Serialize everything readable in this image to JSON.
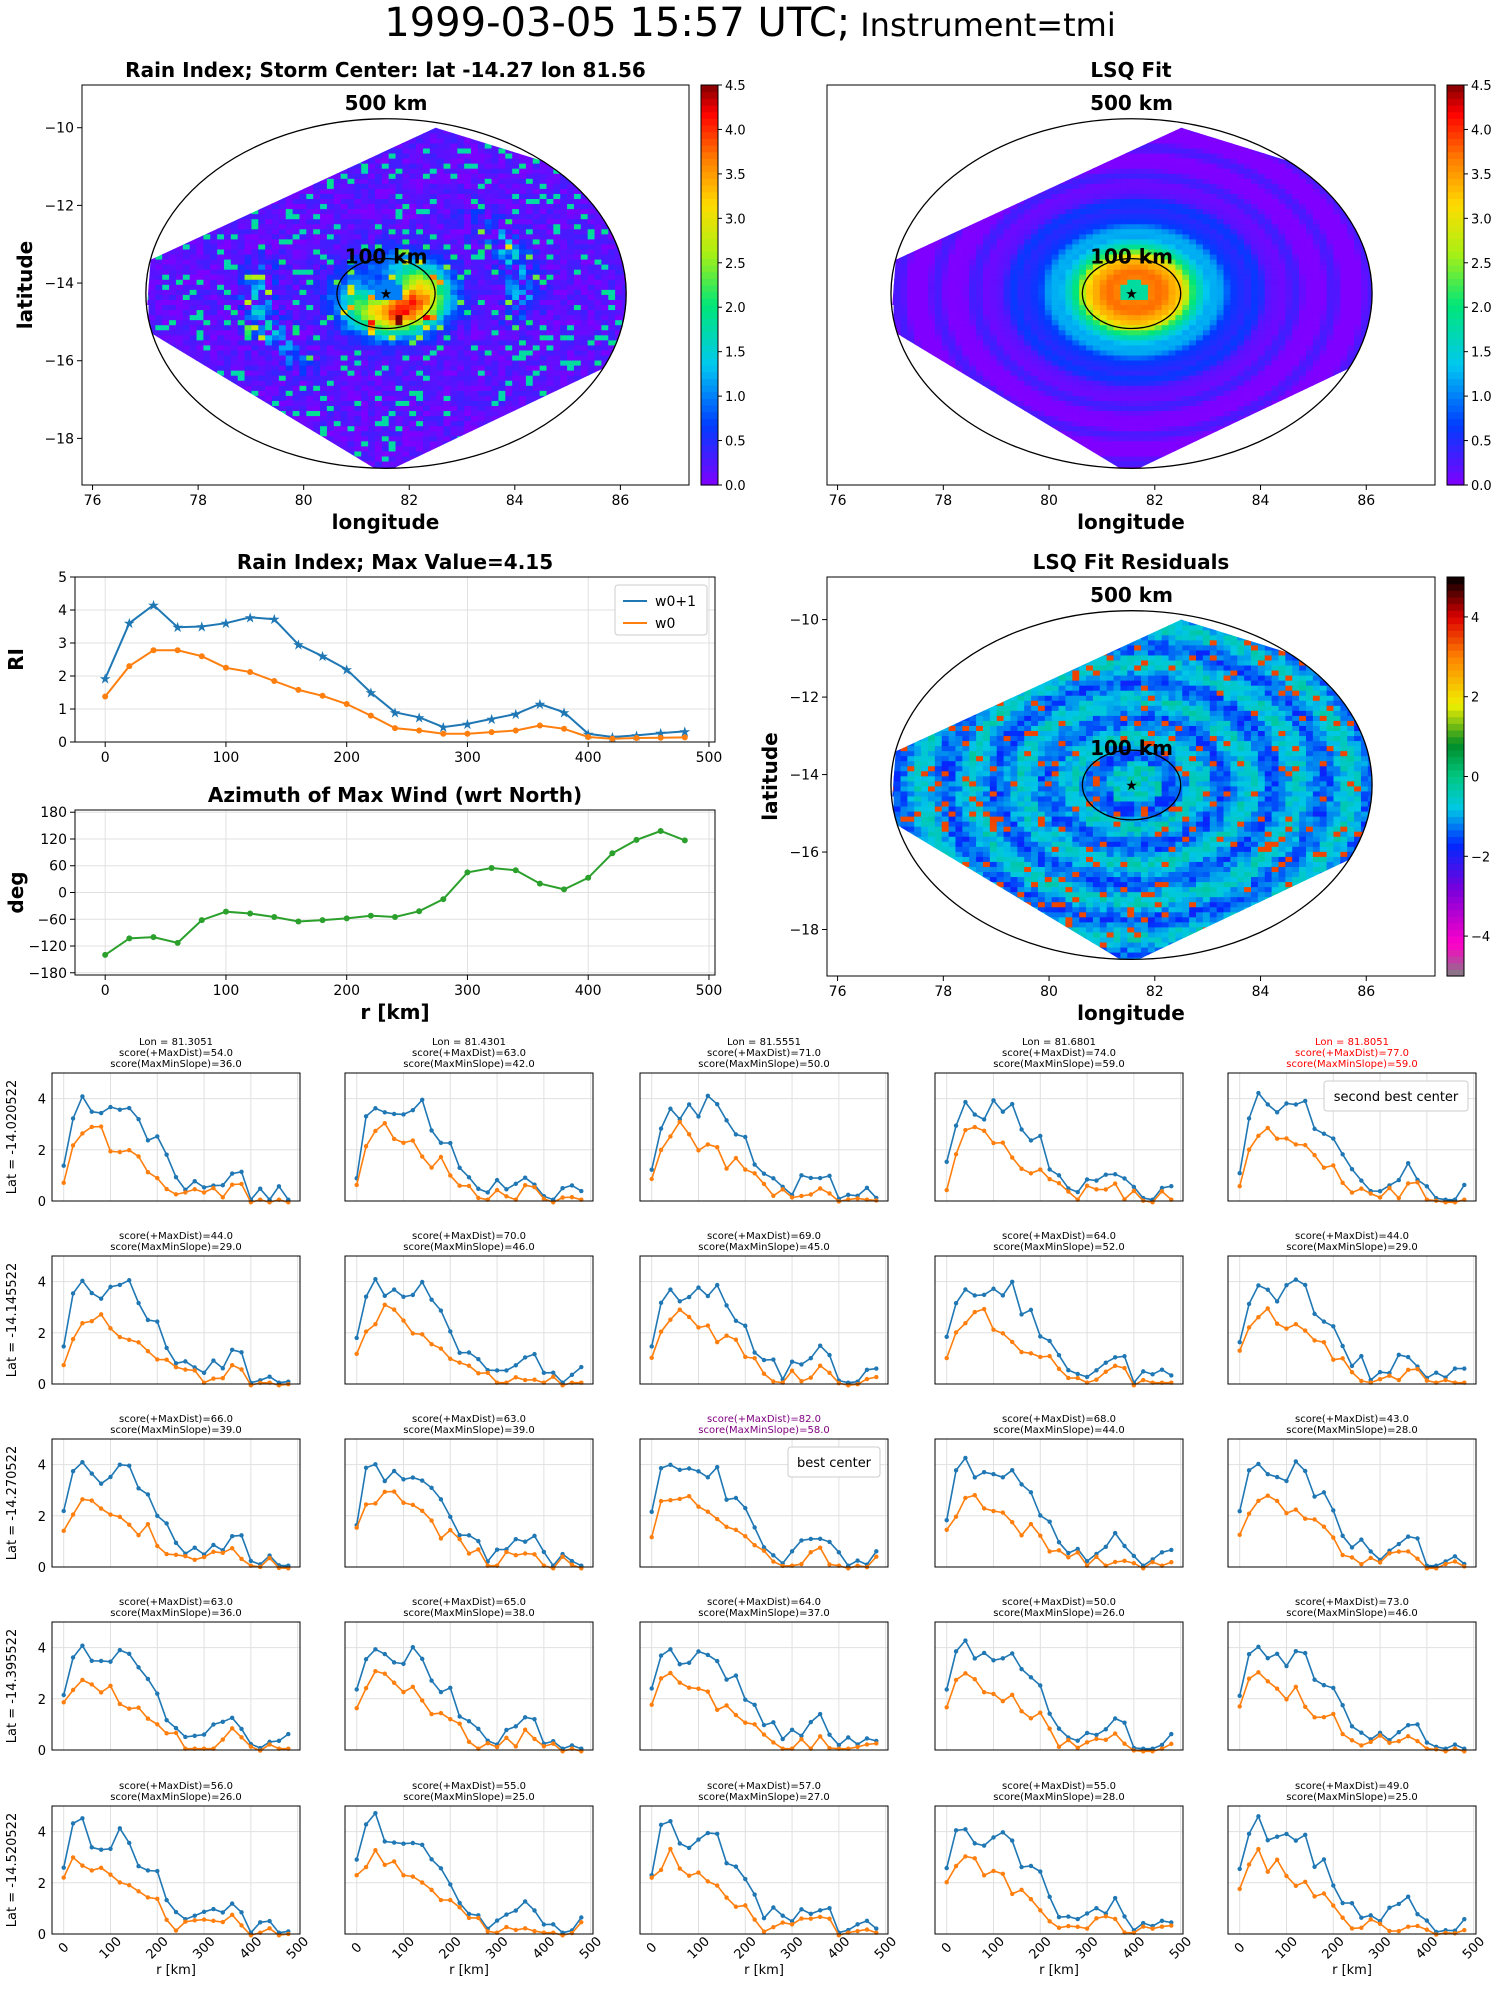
{
  "page": {
    "title_main": "1999-03-05 15:57 UTC;",
    "title_instr": "Instrument=tmi"
  },
  "colors": {
    "w0p1": "#1f77b4",
    "w0": "#ff7f0e",
    "azimuth": "#2ca02c",
    "highlight_red": "#ff0000",
    "highlight_purple": "#800080"
  },
  "chart_data": [
    {
      "id": "rain-index-map",
      "type": "heatmap",
      "title": "Rain Index; Storm Center: lat -14.27 lon 81.56",
      "xlabel": "longitude",
      "ylabel": "latitude",
      "xlim": [
        75.8,
        87.3
      ],
      "ylim": [
        -19.2,
        -8.9
      ],
      "xticks": [
        "76",
        "78",
        "80",
        "82",
        "84",
        "86"
      ],
      "yticks": [
        "−10",
        "−12",
        "−14",
        "−16",
        "−18"
      ],
      "center": [
        81.56,
        -14.27
      ],
      "ring_labels": [
        "500 km",
        "100 km"
      ],
      "colorbar": {
        "range": [
          0,
          4.5
        ],
        "ticks": [
          "0.0",
          "0.5",
          "1.0",
          "1.5",
          "2.0",
          "2.5",
          "3.0",
          "3.5",
          "4.0",
          "4.5"
        ],
        "cmap": "rainbow"
      }
    },
    {
      "id": "lsq-fit-map",
      "type": "heatmap",
      "title": "LSQ Fit",
      "xlabel": "longitude",
      "xlim": [
        75.8,
        87.3
      ],
      "ylim": [
        -19.2,
        -8.9
      ],
      "xticks": [
        "76",
        "78",
        "80",
        "82",
        "84",
        "86"
      ],
      "center": [
        81.56,
        -14.27
      ],
      "ring_labels": [
        "500 km",
        "100 km"
      ],
      "colorbar": {
        "range": [
          0,
          4.5
        ],
        "ticks": [
          "0.0",
          "0.5",
          "1.0",
          "1.5",
          "2.0",
          "2.5",
          "3.0",
          "3.5",
          "4.0",
          "4.5"
        ],
        "cmap": "rainbow"
      }
    },
    {
      "id": "residuals-map",
      "type": "heatmap",
      "title": "LSQ Fit Residuals",
      "xlabel": "longitude",
      "ylabel": "latitude",
      "xlim": [
        75.8,
        87.3
      ],
      "ylim": [
        -19.2,
        -8.9
      ],
      "xticks": [
        "76",
        "78",
        "80",
        "82",
        "84",
        "86"
      ],
      "yticks": [
        "−10",
        "−12",
        "−14",
        "−16",
        "−18"
      ],
      "center": [
        81.56,
        -14.27
      ],
      "ring_labels": [
        "500 km",
        "100 km"
      ],
      "colorbar": {
        "range": [
          -5,
          5
        ],
        "ticks": [
          "4",
          "2",
          "0",
          "−2",
          "−4"
        ],
        "cmap": "diverging"
      }
    },
    {
      "id": "rain-index-profile",
      "type": "line",
      "title": "Rain Index; Max Value=4.15",
      "ylabel": "RI",
      "xlim": [
        -25,
        505
      ],
      "ylim": [
        0,
        5
      ],
      "xticks": [
        "0",
        "100",
        "200",
        "300",
        "400",
        "500"
      ],
      "yticks": [
        "0",
        "1",
        "2",
        "3",
        "4",
        "5"
      ],
      "legend": "top-right",
      "x": [
        0,
        20,
        40,
        60,
        80,
        100,
        120,
        140,
        160,
        180,
        200,
        220,
        240,
        260,
        280,
        300,
        320,
        340,
        360,
        380,
        400,
        420,
        440,
        460,
        480
      ],
      "series": [
        {
          "name": "w0+1",
          "values": [
            1.92,
            3.6,
            4.15,
            3.48,
            3.5,
            3.6,
            3.78,
            3.72,
            2.95,
            2.6,
            2.2,
            1.5,
            0.9,
            0.75,
            0.45,
            0.55,
            0.7,
            0.85,
            1.15,
            0.9,
            0.25,
            0.15,
            0.2,
            0.27,
            0.32
          ]
        },
        {
          "name": "w0",
          "values": [
            1.38,
            2.3,
            2.78,
            2.78,
            2.6,
            2.25,
            2.12,
            1.85,
            1.58,
            1.4,
            1.15,
            0.8,
            0.42,
            0.35,
            0.25,
            0.25,
            0.3,
            0.35,
            0.5,
            0.4,
            0.15,
            0.1,
            0.12,
            0.13,
            0.14
          ]
        }
      ]
    },
    {
      "id": "azimuth-profile",
      "type": "line",
      "title": "Azimuth of Max Wind (wrt North)",
      "xlabel": "r [km]",
      "ylabel": "deg",
      "xlim": [
        -25,
        505
      ],
      "ylim": [
        -185,
        185
      ],
      "xticks": [
        "0",
        "100",
        "200",
        "300",
        "400",
        "500"
      ],
      "yticks": [
        "180",
        "120",
        "60",
        "0",
        "−60",
        "−120",
        "−180"
      ],
      "x": [
        0,
        20,
        40,
        60,
        80,
        100,
        120,
        140,
        160,
        180,
        200,
        220,
        240,
        260,
        280,
        300,
        320,
        340,
        360,
        380,
        400,
        420,
        440,
        460,
        480
      ],
      "values": [
        -140,
        -103,
        -100,
        -113,
        -62,
        -43,
        -47,
        -55,
        -65,
        -62,
        -58,
        -52,
        -55,
        -42,
        -15,
        45,
        55,
        50,
        20,
        7,
        33,
        88,
        118,
        138,
        117
      ]
    },
    {
      "id": "candidate-grid",
      "type": "line",
      "xlabel": "r [km]",
      "xticks": [
        "0",
        "100",
        "200",
        "300",
        "400",
        "500"
      ],
      "yticks": [
        "0",
        "2",
        "4"
      ],
      "lons": [
        "Lon = 81.3051",
        "Lon = 81.4301",
        "Lon = 81.5551",
        "Lon = 81.6801",
        "Lon = 81.8051"
      ],
      "row_labels": [
        "Lat = -14.020522",
        "Lat = -14.145522",
        "Lat = -14.270522",
        "Lat = -14.395522",
        "Lat = -14.520522"
      ],
      "scores": [
        [
          [
            "score(+MaxDist)=54.0",
            "score(MaxMinSlope)=36.0"
          ],
          [
            "score(+MaxDist)=63.0",
            "score(MaxMinSlope)=42.0"
          ],
          [
            "score(+MaxDist)=71.0",
            "score(MaxMinSlope)=50.0"
          ],
          [
            "score(+MaxDist)=74.0",
            "score(MaxMinSlope)=59.0"
          ],
          [
            "score(+MaxDist)=77.0",
            "score(MaxMinSlope)=59.0"
          ]
        ],
        [
          [
            "score(+MaxDist)=44.0",
            "score(MaxMinSlope)=29.0"
          ],
          [
            "score(+MaxDist)=70.0",
            "score(MaxMinSlope)=46.0"
          ],
          [
            "score(+MaxDist)=69.0",
            "score(MaxMinSlope)=45.0"
          ],
          [
            "score(+MaxDist)=64.0",
            "score(MaxMinSlope)=52.0"
          ],
          [
            "score(+MaxDist)=44.0",
            "score(MaxMinSlope)=29.0"
          ]
        ],
        [
          [
            "score(+MaxDist)=66.0",
            "score(MaxMinSlope)=39.0"
          ],
          [
            "score(+MaxDist)=63.0",
            "score(MaxMinSlope)=39.0"
          ],
          [
            "score(+MaxDist)=82.0",
            "score(MaxMinSlope)=58.0"
          ],
          [
            "score(+MaxDist)=68.0",
            "score(MaxMinSlope)=44.0"
          ],
          [
            "score(+MaxDist)=43.0",
            "score(MaxMinSlope)=28.0"
          ]
        ],
        [
          [
            "score(+MaxDist)=63.0",
            "score(MaxMinSlope)=36.0"
          ],
          [
            "score(+MaxDist)=65.0",
            "score(MaxMinSlope)=38.0"
          ],
          [
            "score(+MaxDist)=64.0",
            "score(MaxMinSlope)=37.0"
          ],
          [
            "score(+MaxDist)=50.0",
            "score(MaxMinSlope)=26.0"
          ],
          [
            "score(+MaxDist)=73.0",
            "score(MaxMinSlope)=46.0"
          ]
        ],
        [
          [
            "score(+MaxDist)=56.0",
            "score(MaxMinSlope)=26.0"
          ],
          [
            "score(+MaxDist)=55.0",
            "score(MaxMinSlope)=25.0"
          ],
          [
            "score(+MaxDist)=57.0",
            "score(MaxMinSlope)=27.0"
          ],
          [
            "score(+MaxDist)=55.0",
            "score(MaxMinSlope)=28.0"
          ],
          [
            "score(+MaxDist)=49.0",
            "score(MaxMinSlope)=25.0"
          ]
        ]
      ],
      "best_center": {
        "row": 2,
        "col": 2,
        "label": "best center"
      },
      "second_best_center": {
        "row": 0,
        "col": 4,
        "label": "second best center"
      }
    }
  ]
}
